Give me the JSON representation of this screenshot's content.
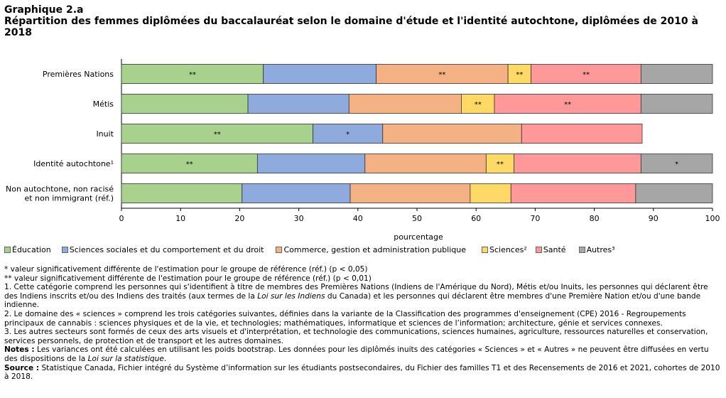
{
  "title": {
    "line1": "Graphique 2.a",
    "line2": "Répartition des femmes diplômées du baccalauréat selon le domaine d'étude et l'identité autochtone, diplômées de 2010 à 2018"
  },
  "chart_data": {
    "type": "bar",
    "orientation": "horizontal",
    "stacked": true,
    "categories": [
      "Premières Nations",
      "Métis",
      "Inuit",
      "Identité autochtone¹",
      "Non autochtone, non racisé et non immigrant (réf.)"
    ],
    "category_lines": [
      [
        "Premières Nations"
      ],
      [
        "Métis"
      ],
      [
        "Inuit"
      ],
      [
        "Identité autochtone¹"
      ],
      [
        "Non autochtone, non racisé",
        "et non immigrant (réf.)"
      ]
    ],
    "series": [
      {
        "name": "Éducation",
        "color": "#a9d18e",
        "values": [
          24.0,
          21.4,
          32.4,
          23.0,
          20.4
        ],
        "labels": [
          "**",
          "",
          "**",
          "**",
          ""
        ]
      },
      {
        "name": "Sciences sociales et du comportement et du droit",
        "color": "#8faadc",
        "values": [
          19.1,
          17.1,
          11.8,
          18.2,
          18.3
        ],
        "labels": [
          "",
          "",
          "*",
          "",
          ""
        ]
      },
      {
        "name": "Commerce, gestion et administration publique",
        "color": "#f4b183",
        "values": [
          22.3,
          19.0,
          23.5,
          20.5,
          20.3
        ],
        "labels": [
          "**",
          "",
          "",
          "",
          ""
        ]
      },
      {
        "name": "Sciences²",
        "color": "#ffd966",
        "values": [
          3.9,
          5.6,
          0,
          4.7,
          6.9
        ],
        "labels": [
          "**",
          "**",
          "",
          "**",
          ""
        ]
      },
      {
        "name": "Santé",
        "color": "#ff9999",
        "values": [
          18.6,
          24.8,
          20.4,
          21.5,
          21.1
        ],
        "labels": [
          "**",
          "**",
          "",
          "",
          ""
        ]
      },
      {
        "name": "Autres³",
        "color": "#a6a6a6",
        "values": [
          12.1,
          12.1,
          0,
          12.1,
          13.0
        ],
        "labels": [
          "",
          "",
          "",
          "*",
          ""
        ]
      }
    ],
    "xlabel": "pourcentage",
    "xlim": [
      0,
      100
    ],
    "xticks": [
      0,
      10,
      20,
      30,
      40,
      50,
      60,
      70,
      80,
      90,
      100
    ],
    "grid": false,
    "legend_position": "bottom"
  },
  "notes": {
    "n1": "* valeur significativement différente de l'estimation pour le groupe de référence (réf.) (p < 0,05)",
    "n2": "** valeur significativement différente de l'estimation pour le groupe de référence (réf.) (p < 0,01)",
    "n3a": "1. Cette catégorie comprend les personnes qui s'identifient à titre de membres des Premières Nations (Indiens de l'Amérique du Nord), Métis et/ou Inuits, les personnes qui déclarent être des Indiens inscrits et/ou des Indiens des traités (aux termes de la ",
    "n3b": "Loi sur les Indiens",
    "n3c": " du Canada) et les personnes qui déclarent être membres d'une Première Nation et/ou d'une bande indienne.",
    "n4": "2. Le domaine des « sciences » comprend les trois catégories suivantes, définies dans la variante de la Classification des programmes d'enseignement (CPE) 2016 - Regroupements principaux de cannabis : sciences physiques et de la vie, et technologies; mathématiques, informatique et sciences de l’information; architecture, génie et services connexes.",
    "n5": "3. Les autres secteurs sont formés de ceux des arts visuels et d'interprétation, et technologie des communications, sciences humaines, agriculture, ressources naturelles et conservation, services personnels, de protection et de transport et les autres domaines.",
    "notes_label": "Notes :",
    "notes_a": " Les variances ont été calculées en utilisant les poids bootstrap. Les données pour les diplômés inuits des catégories « Sciences » et « Autres » ne peuvent être diffusées en vertu des dispositions de la ",
    "notes_b": "Loi sur la statistique",
    "notes_c": ".",
    "source_label": "Source :",
    "source_text": " Statistique Canada, Fichier intégré du Système d’information sur les étudiants postsecondaires, du Fichier des familles T1 et des Recensements de 2016 et 2021, cohortes de 2010 à 2018."
  }
}
